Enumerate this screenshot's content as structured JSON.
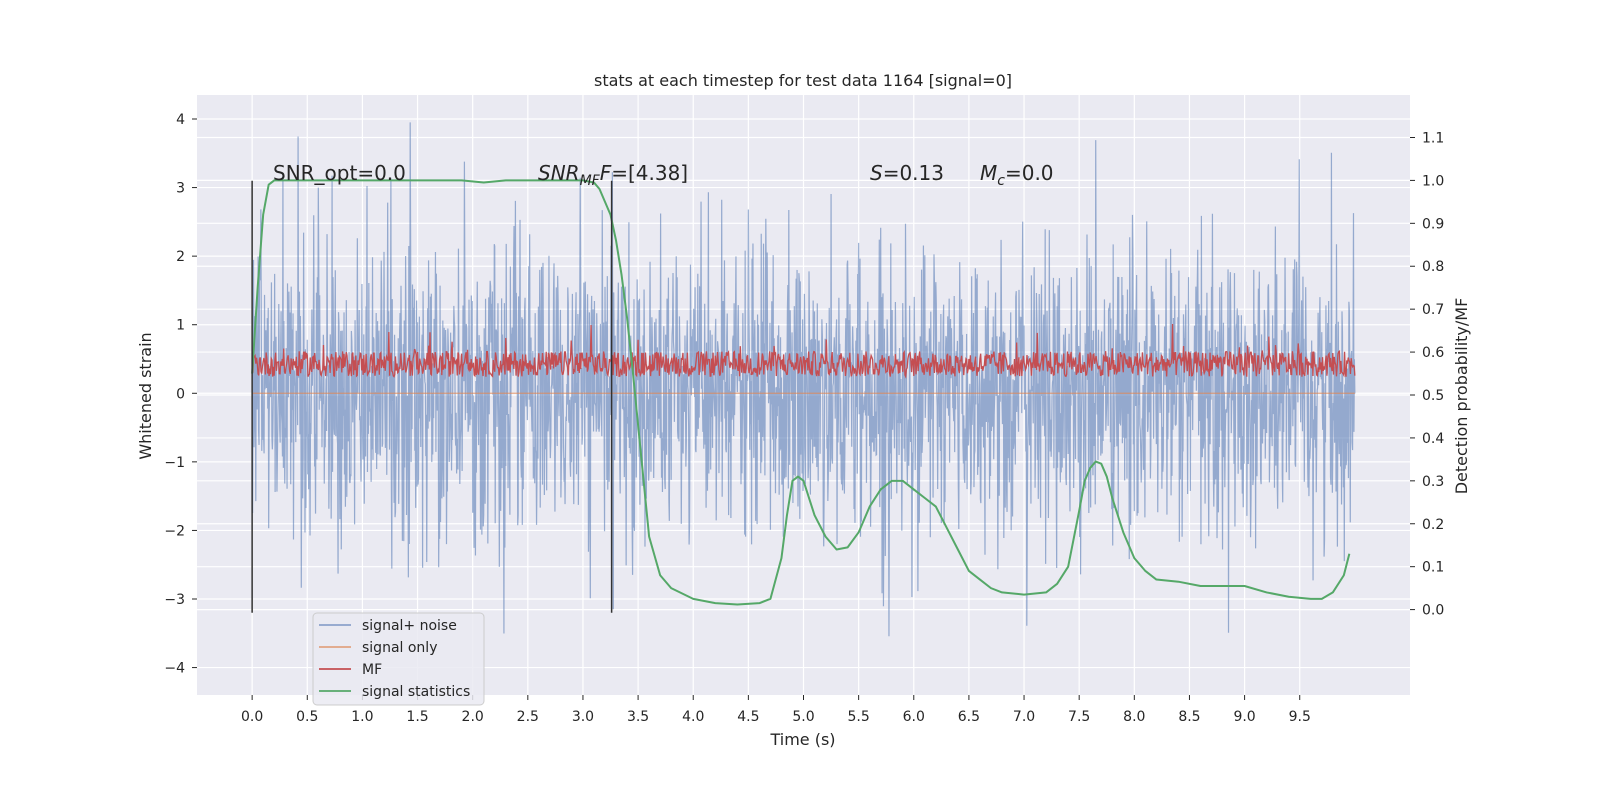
{
  "chart_data": {
    "type": "line",
    "title": "stats at each timestep for test data 1164 [signal=0]",
    "xlabel": "Time (s)",
    "ylabel_left": "Whitened strain",
    "ylabel_right": "Detection probability/MF",
    "xlim": [
      -0.5,
      10.5
    ],
    "ylim_left": [
      -4.4,
      4.35
    ],
    "ylim_right": [
      -0.199,
      1.199
    ],
    "x_ticks": [
      "0.0",
      "0.5",
      "1.0",
      "1.5",
      "2.0",
      "2.5",
      "3.0",
      "3.5",
      "4.0",
      "4.5",
      "5.0",
      "5.5",
      "6.0",
      "6.5",
      "7.0",
      "7.5",
      "8.0",
      "8.5",
      "9.0",
      "9.5"
    ],
    "y_ticks_left": [
      "4",
      "3",
      "2",
      "1",
      "0",
      "−1",
      "−2",
      "−3",
      "−4"
    ],
    "y_ticks_right": [
      "1.1",
      "1.0",
      "0.9",
      "0.8",
      "0.7",
      "0.6",
      "0.5",
      "0.4",
      "0.3",
      "0.2",
      "0.1",
      "0.0"
    ],
    "grid": true,
    "colors": {
      "background": "#eaeaf2",
      "grid": "#ffffff",
      "signal_noise": "#4c72b0",
      "signal_only": "#dd8452",
      "mf": "#c44e52",
      "statistics": "#55a868",
      "vline": "#333333"
    },
    "annotations": [
      {
        "text": "SNR_opt=0.0"
      },
      {
        "text_main": "SNR",
        "text_sub": "MF",
        "text_tail": "=[4.38]"
      },
      {
        "text_main": "S",
        "text_tail": "=0.13"
      },
      {
        "text_main": "M",
        "text_sub": "c",
        "text_tail": "=0.0"
      }
    ],
    "vlines": [
      0.0,
      3.26
    ],
    "legend": {
      "placement": "lower-left",
      "entries": [
        "signal+ noise",
        "signal only",
        "MF",
        "signal statistics"
      ]
    },
    "series": [
      {
        "name": "signal+ noise",
        "axis": "left",
        "x_range": [
          0.0,
          10.0
        ],
        "y_range": [
          -3.9,
          3.95
        ]
      },
      {
        "name": "signal only",
        "axis": "left",
        "x_range": [
          0.0,
          10.0
        ],
        "y_value": 0.0
      },
      {
        "name": "MF",
        "axis": "right",
        "x_range": [
          0.0,
          10.0
        ],
        "y_range": [
          0.5,
          0.67
        ]
      },
      {
        "name": "signal statistics",
        "axis": "right",
        "x": [
          0.0,
          0.05,
          0.1,
          0.15,
          0.2,
          0.3,
          0.5,
          0.8,
          1.0,
          1.3,
          1.6,
          1.9,
          2.1,
          2.3,
          2.6,
          2.9,
          3.0,
          3.1,
          3.15,
          3.2,
          3.25,
          3.3,
          3.35,
          3.4,
          3.45,
          3.5,
          3.55,
          3.6,
          3.7,
          3.8,
          4.0,
          4.2,
          4.4,
          4.6,
          4.7,
          4.8,
          4.85,
          4.9,
          4.95,
          5.0,
          5.1,
          5.2,
          5.3,
          5.4,
          5.5,
          5.6,
          5.7,
          5.8,
          5.9,
          6.0,
          6.1,
          6.2,
          6.3,
          6.4,
          6.5,
          6.6,
          6.7,
          6.8,
          7.0,
          7.2,
          7.3,
          7.4,
          7.5,
          7.55,
          7.6,
          7.65,
          7.7,
          7.75,
          7.8,
          7.9,
          8.0,
          8.1,
          8.2,
          8.4,
          8.6,
          8.8,
          9.0,
          9.2,
          9.4,
          9.6,
          9.7,
          9.8,
          9.9,
          9.95
        ],
        "y": [
          0.55,
          0.75,
          0.92,
          0.99,
          1.0,
          1.0,
          1.0,
          1.0,
          1.0,
          1.0,
          1.0,
          1.0,
          0.995,
          1.0,
          1.0,
          1.0,
          1.0,
          0.995,
          0.98,
          0.95,
          0.92,
          0.86,
          0.78,
          0.68,
          0.56,
          0.43,
          0.3,
          0.17,
          0.08,
          0.05,
          0.025,
          0.015,
          0.012,
          0.015,
          0.025,
          0.12,
          0.22,
          0.3,
          0.31,
          0.3,
          0.22,
          0.17,
          0.14,
          0.145,
          0.18,
          0.24,
          0.28,
          0.3,
          0.3,
          0.28,
          0.26,
          0.24,
          0.19,
          0.14,
          0.09,
          0.07,
          0.05,
          0.04,
          0.035,
          0.04,
          0.06,
          0.1,
          0.23,
          0.3,
          0.33,
          0.345,
          0.34,
          0.31,
          0.26,
          0.18,
          0.12,
          0.09,
          0.07,
          0.065,
          0.055,
          0.055,
          0.055,
          0.04,
          0.03,
          0.025,
          0.025,
          0.04,
          0.08,
          0.13
        ]
      }
    ]
  }
}
